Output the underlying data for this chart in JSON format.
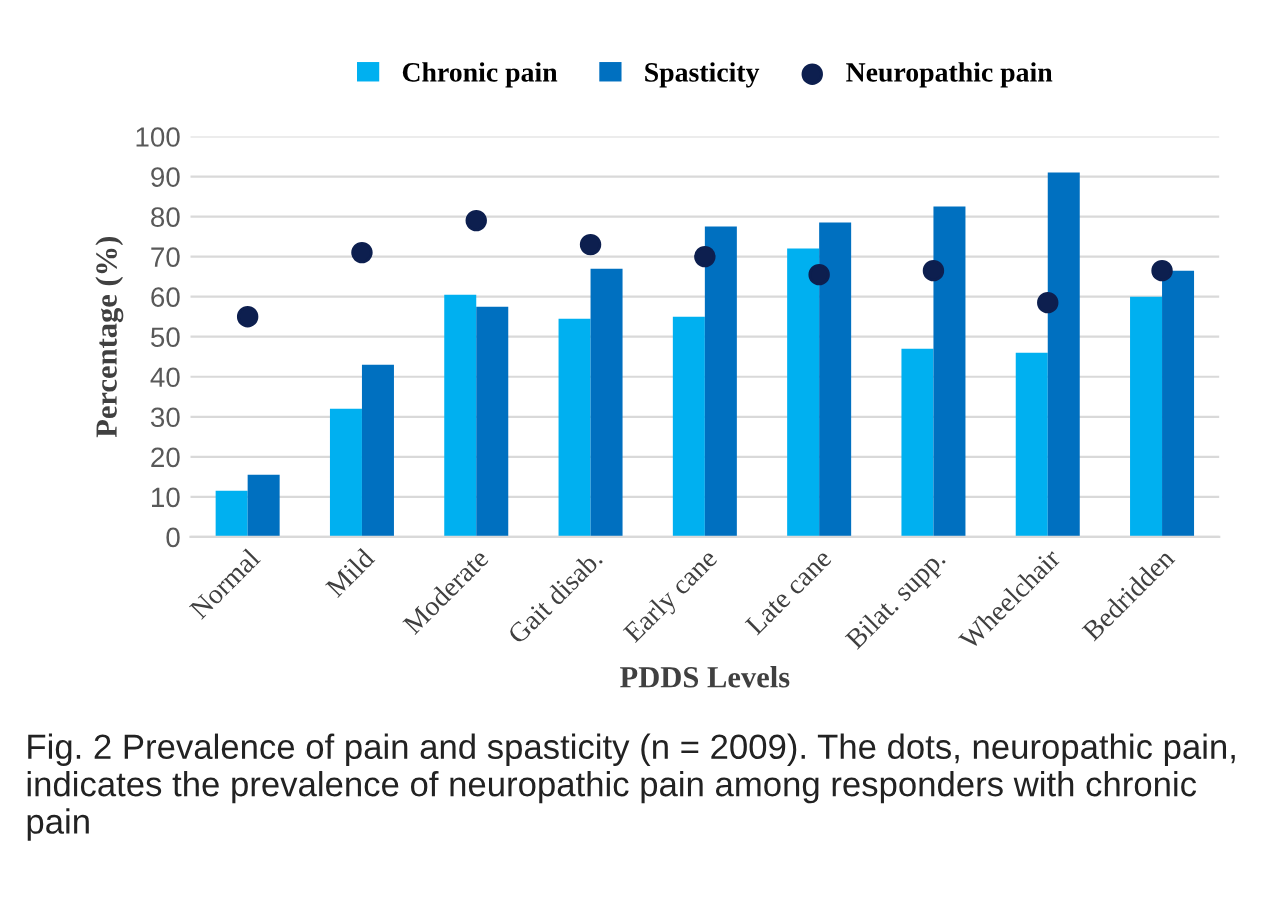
{
  "chart_data": {
    "type": "bar",
    "xlabel": "PDDS Levels",
    "ylabel": "Percentage (%)",
    "categories": [
      "Normal",
      "Mild",
      "Moderate",
      "Gait disab.",
      "Early cane",
      "Late cane",
      "Bilat. supp.",
      "Wheelchair",
      "Bedridden"
    ],
    "series": [
      {
        "name": "Chronic pain",
        "color": "#00b0f0",
        "values": [
          11.5,
          32,
          60.5,
          54.5,
          55,
          72,
          47,
          46,
          60
        ]
      },
      {
        "name": "Spasticity",
        "color": "#0070c0",
        "values": [
          15.5,
          43,
          57.5,
          67,
          77.5,
          78.5,
          82.5,
          91,
          66.5
        ]
      },
      {
        "name": "Neuropathic pain",
        "type": "scatter",
        "color": "#0d1f4f",
        "x": [
          "Normal",
          "Mild",
          "Moderate",
          "Gait disab.",
          "Early cane",
          "Late cane",
          "Bilat. supp.",
          "Wheelchair",
          "Bedridden"
        ],
        "values": [
          55,
          71,
          79,
          73,
          70,
          65.5,
          66.5,
          58.5,
          66.5
        ]
      }
    ],
    "ylim": [
      0,
      100
    ],
    "yticks": [
      0,
      10,
      20,
      30,
      40,
      50,
      60,
      70,
      80,
      90,
      100
    ],
    "grid": "y",
    "legend": "top",
    "marker": "circle",
    "annotations": [
      "Fig. 2 Prevalence of pain and spasticity (n = 2009). The dots, neuropathic pain, indicates the prevalence of neuropathic pain among responders with chronic pain"
    ]
  }
}
